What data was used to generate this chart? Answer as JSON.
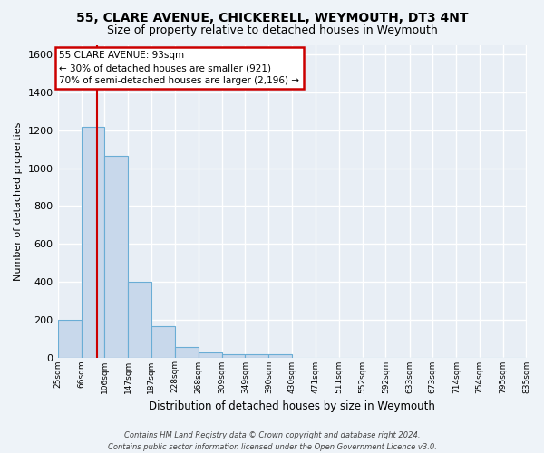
{
  "title1": "55, CLARE AVENUE, CHICKERELL, WEYMOUTH, DT3 4NT",
  "title2": "Size of property relative to detached houses in Weymouth",
  "xlabel": "Distribution of detached houses by size in Weymouth",
  "ylabel": "Number of detached properties",
  "bins": [
    25,
    66,
    106,
    147,
    187,
    228,
    268,
    309,
    349,
    390,
    430,
    471,
    511,
    552,
    592,
    633,
    673,
    714,
    754,
    795,
    835
  ],
  "values": [
    200,
    1220,
    1065,
    400,
    165,
    55,
    25,
    15,
    15,
    15,
    0,
    0,
    0,
    0,
    0,
    0,
    0,
    0,
    0,
    0
  ],
  "bar_color": "#c8d8eb",
  "bar_edge_color": "#6aadd5",
  "vline_x": 93,
  "vline_color": "#cc0000",
  "ylim": [
    0,
    1650
  ],
  "yticks": [
    0,
    200,
    400,
    600,
    800,
    1000,
    1200,
    1400,
    1600
  ],
  "annotation_text": "55 CLARE AVENUE: 93sqm\n← 30% of detached houses are smaller (921)\n70% of semi-detached houses are larger (2,196) →",
  "annotation_box_facecolor": "#ffffff",
  "annotation_box_edgecolor": "#cc0000",
  "bg_color": "#eef3f8",
  "plot_bg_color": "#e8eef5",
  "footnote": "Contains HM Land Registry data © Crown copyright and database right 2024.\nContains public sector information licensed under the Open Government Licence v3.0.",
  "grid_color": "#ffffff",
  "grid_linewidth": 1.0,
  "spine_color": "#aaaaaa"
}
